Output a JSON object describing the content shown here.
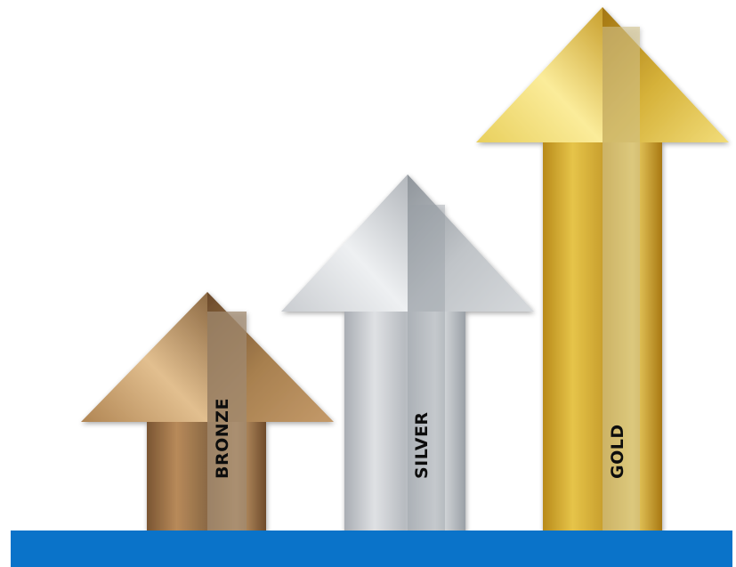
{
  "arrows": {
    "bronze": {
      "label": "BRONZE"
    },
    "silver": {
      "label": "SILVER"
    },
    "gold": {
      "label": "GOLD"
    }
  },
  "colors": {
    "base_bar": "#0a73c9",
    "background": "#ffffff"
  }
}
